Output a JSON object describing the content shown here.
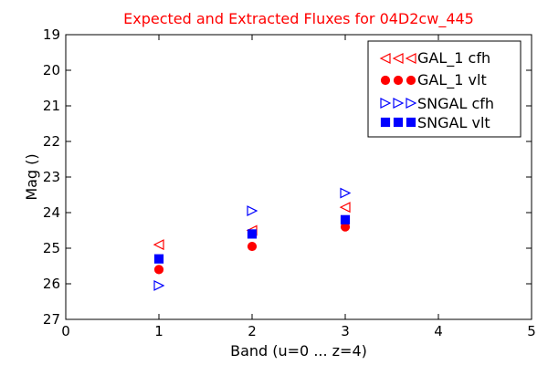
{
  "chart_data": {
    "type": "scatter",
    "title": "Expected and Extracted Fluxes for 04D2cw_445",
    "xlabel": "Band (u=0 ... z=4)",
    "ylabel": "Mag ()",
    "xlim": [
      0,
      5
    ],
    "ylim": [
      27,
      19
    ],
    "y_inverted": true,
    "xticks": [
      "0",
      "1",
      "2",
      "3",
      "4",
      "5"
    ],
    "yticks": [
      "19",
      "20",
      "21",
      "22",
      "23",
      "24",
      "25",
      "26",
      "27"
    ],
    "grid": false,
    "legend_position": "top-right",
    "series": [
      {
        "name": "GAL_1 cfh",
        "marker": "triangle-left",
        "filled": false,
        "color": "#ff0000",
        "x": [
          1,
          2,
          3
        ],
        "y": [
          24.9,
          24.5,
          23.85
        ]
      },
      {
        "name": "GAL_1 vlt",
        "marker": "circle",
        "filled": true,
        "color": "#ff0000",
        "x": [
          1,
          2,
          3
        ],
        "y": [
          25.6,
          24.95,
          24.4
        ]
      },
      {
        "name": "SNGAL cfh",
        "marker": "triangle-right",
        "filled": false,
        "color": "#0000ff",
        "x": [
          1,
          2,
          3
        ],
        "y": [
          26.05,
          23.95,
          23.45
        ]
      },
      {
        "name": "SNGAL vlt",
        "marker": "square",
        "filled": true,
        "color": "#0000ff",
        "x": [
          1,
          2,
          3
        ],
        "y": [
          25.3,
          24.6,
          24.2
        ]
      }
    ]
  }
}
